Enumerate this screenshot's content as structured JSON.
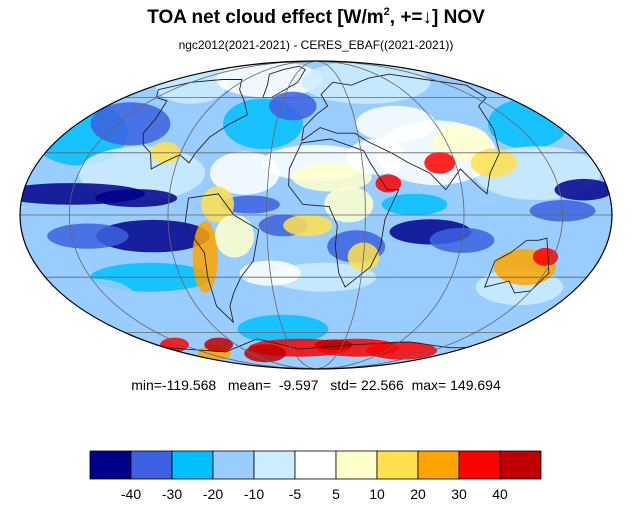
{
  "figure": {
    "title_main": "TOA net cloud effect [W/m",
    "title_sup": "2",
    "title_tail": ", +=↓]  NOV",
    "subtitle": "ngc2012(2021-2021) - CERES_EBAF((2021-2021))",
    "stats": {
      "min_label": "min=",
      "min": "-119.568",
      "mean_label": "mean=",
      "mean": "-9.597",
      "std_label": "std=",
      "std": "22.566",
      "max_label": "max=",
      "max": "149.694"
    }
  },
  "map": {
    "projection": "mollweide",
    "graticule": true,
    "coastlines": true
  },
  "colorbar": {
    "colors": [
      "#00008b",
      "#3d61e0",
      "#00bfff",
      "#99ccff",
      "#ccecff",
      "#ffffff",
      "#ffffcc",
      "#ffe14d",
      "#ffa500",
      "#ff0000",
      "#c00000"
    ],
    "tick_labels": [
      "-40",
      "-30",
      "-20",
      "-10",
      "-5",
      "5",
      "10",
      "20",
      "30",
      "40"
    ]
  },
  "colors": {
    "ocean_background": "#ffffff",
    "coastline": "#222222",
    "graticule": "#666666"
  }
}
